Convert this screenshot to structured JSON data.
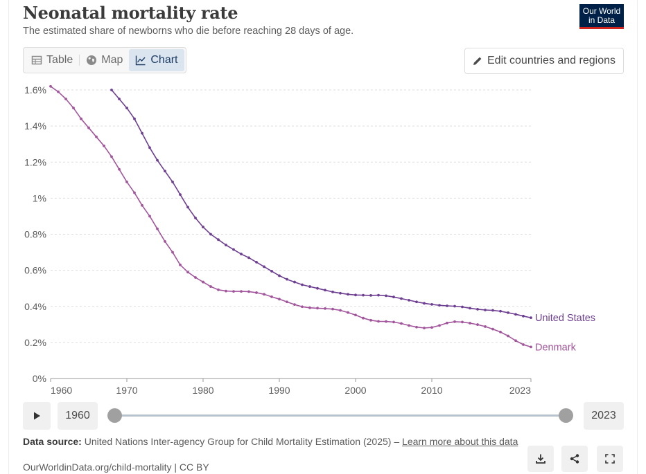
{
  "header": {
    "title": "Neonatal mortality rate",
    "subtitle": "The estimated share of newborns who die before reaching 28 days of age.",
    "logo_line1": "Our World",
    "logo_line2": "in Data"
  },
  "tabs": [
    {
      "label": "Table",
      "icon": "table-icon"
    },
    {
      "label": "Map",
      "icon": "globe-icon"
    },
    {
      "label": "Chart",
      "icon": "line-chart-icon",
      "active": true
    }
  ],
  "edit_button": {
    "label": "Edit countries and regions",
    "icon": "pencil-icon"
  },
  "timeline": {
    "start_year": "1960",
    "end_year": "2023",
    "play_icon": "play-icon"
  },
  "footer": {
    "source_label": "Data source:",
    "source_text": "United Nations Inter-agency Group for Child Mortality Estimation (2025) –",
    "learn_more": "Learn more about this data",
    "url_text": "OurWorldinData.org/child-mortality | CC BY"
  },
  "actions": [
    {
      "name": "download",
      "icon": "download-icon"
    },
    {
      "name": "share",
      "icon": "share-icon"
    },
    {
      "name": "fullscreen",
      "icon": "fullscreen-icon"
    }
  ],
  "chart_data": {
    "type": "line",
    "title": "Neonatal mortality rate",
    "x_ticks": [
      "1960",
      "1970",
      "1980",
      "1990",
      "2000",
      "2010",
      "2023"
    ],
    "y_ticks": [
      "0%",
      "0.2%",
      "0.4%",
      "0.6%",
      "0.8%",
      "1%",
      "1.2%",
      "1.4%",
      "1.6%"
    ],
    "xlim": [
      1960,
      2023
    ],
    "ylim": [
      0,
      1.6
    ],
    "grid": true,
    "series": [
      {
        "name": "United States",
        "color": "#6d3e91",
        "x": [
          1968,
          1969,
          1970,
          1971,
          1972,
          1973,
          1974,
          1975,
          1976,
          1977,
          1978,
          1979,
          1980,
          1981,
          1982,
          1983,
          1984,
          1985,
          1986,
          1987,
          1988,
          1989,
          1990,
          1991,
          1992,
          1993,
          1994,
          1995,
          1996,
          1997,
          1998,
          1999,
          2000,
          2001,
          2002,
          2003,
          2004,
          2005,
          2006,
          2007,
          2008,
          2009,
          2010,
          2011,
          2012,
          2013,
          2014,
          2015,
          2016,
          2017,
          2018,
          2019,
          2020,
          2021,
          2022,
          2023
        ],
        "y": [
          1.6,
          1.55,
          1.5,
          1.44,
          1.36,
          1.28,
          1.21,
          1.15,
          1.09,
          1.02,
          0.95,
          0.89,
          0.84,
          0.8,
          0.77,
          0.74,
          0.715,
          0.69,
          0.67,
          0.645,
          0.62,
          0.595,
          0.57,
          0.55,
          0.535,
          0.52,
          0.51,
          0.5,
          0.49,
          0.48,
          0.473,
          0.467,
          0.463,
          0.462,
          0.461,
          0.462,
          0.459,
          0.452,
          0.443,
          0.434,
          0.425,
          0.417,
          0.411,
          0.406,
          0.403,
          0.401,
          0.397,
          0.39,
          0.384,
          0.38,
          0.378,
          0.373,
          0.365,
          0.356,
          0.346,
          0.337
        ]
      },
      {
        "name": "Denmark",
        "color": "#a2559c",
        "x": [
          1960,
          1961,
          1962,
          1963,
          1964,
          1965,
          1966,
          1967,
          1968,
          1969,
          1970,
          1971,
          1972,
          1973,
          1974,
          1975,
          1976,
          1977,
          1978,
          1979,
          1980,
          1981,
          1982,
          1983,
          1984,
          1985,
          1986,
          1987,
          1988,
          1989,
          1990,
          1991,
          1992,
          1993,
          1994,
          1995,
          1996,
          1997,
          1998,
          1999,
          2000,
          2001,
          2002,
          2003,
          2004,
          2005,
          2006,
          2007,
          2008,
          2009,
          2010,
          2011,
          2012,
          2013,
          2014,
          2015,
          2016,
          2017,
          2018,
          2019,
          2020,
          2021,
          2022,
          2023
        ],
        "y": [
          1.62,
          1.59,
          1.55,
          1.5,
          1.44,
          1.39,
          1.34,
          1.29,
          1.23,
          1.16,
          1.09,
          1.03,
          0.96,
          0.9,
          0.83,
          0.76,
          0.7,
          0.63,
          0.59,
          0.56,
          0.535,
          0.51,
          0.492,
          0.485,
          0.483,
          0.483,
          0.482,
          0.476,
          0.467,
          0.453,
          0.44,
          0.425,
          0.41,
          0.398,
          0.392,
          0.39,
          0.388,
          0.385,
          0.378,
          0.366,
          0.352,
          0.335,
          0.323,
          0.317,
          0.316,
          0.313,
          0.305,
          0.294,
          0.285,
          0.28,
          0.283,
          0.294,
          0.308,
          0.315,
          0.313,
          0.307,
          0.299,
          0.288,
          0.274,
          0.258,
          0.236,
          0.21,
          0.188,
          0.175
        ]
      }
    ]
  }
}
